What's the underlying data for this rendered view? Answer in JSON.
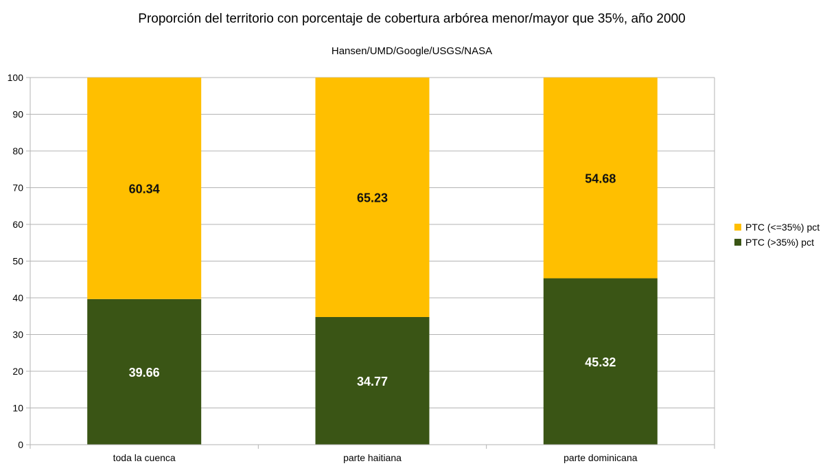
{
  "chart_data": {
    "type": "bar",
    "stacked": true,
    "title": "Proporción del territorio con porcentaje de cobertura arbórea menor/mayor que 35%, año 2000",
    "subtitle": "Hansen/UMD/Google/USGS/NASA",
    "categories": [
      "toda la cuenca",
      "parte haitiana",
      "parte dominicana"
    ],
    "series": [
      {
        "name": "PTC (>35%) pct",
        "values": [
          39.66,
          34.77,
          45.32
        ],
        "color": "#3a5515",
        "label_color": "#ffffff"
      },
      {
        "name": "PTC (<=35%) pct",
        "values": [
          60.34,
          65.23,
          54.68
        ],
        "color": "#ffbf00",
        "label_color": "#111111"
      }
    ],
    "ylim": [
      0,
      100
    ],
    "yticks": [
      "0",
      "10",
      "20",
      "30",
      "40",
      "50",
      "60",
      "70",
      "80",
      "90",
      "100"
    ],
    "grid": true,
    "legend_position": "right",
    "legend_order": [
      "PTC (<=35%) pct",
      "PTC (>35%) pct"
    ]
  }
}
